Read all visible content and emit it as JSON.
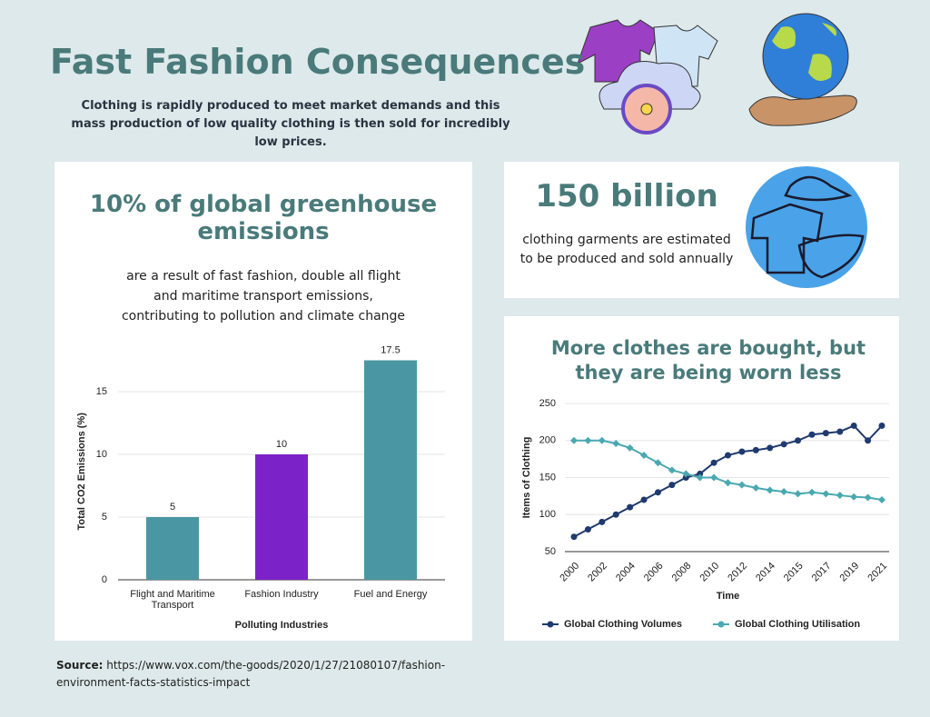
{
  "header": {
    "title": "Fast Fashion Consequences",
    "subtitle": "Clothing is rapidly produced to meet market demands and this mass production of low quality clothing is then sold for incredibly low prices."
  },
  "panels": [
    {
      "heading": "10% of global greenhouse emissions",
      "text": "are a result of fast fashion, double all flight and maritime transport emissions, contributing to pollution and climate change"
    },
    {
      "heading": "150 billion",
      "text": "clothing garments are estimated to be produced and sold annually"
    }
  ],
  "chart_data": [
    {
      "type": "bar",
      "categories": [
        "Flight and Maritime Transport",
        "Fashion Industry",
        "Fuel and Energy"
      ],
      "values": [
        5,
        10,
        17.5
      ],
      "colors": [
        "#4a97a3",
        "#7b22c8",
        "#4a97a3"
      ],
      "xlabel": "Polluting Industries",
      "ylabel": "Total CO2 Emissions (%)",
      "ylim": [
        0,
        18
      ],
      "yticks": [
        0,
        5,
        10,
        15
      ],
      "grid": true
    },
    {
      "type": "line",
      "title": "More clothes are bought, but they are being worn less",
      "categories": [
        "2000",
        null,
        "2002",
        null,
        "2004",
        null,
        "2006",
        null,
        "2008",
        null,
        "2010",
        null,
        "2012",
        null,
        "2014",
        null,
        "2015",
        null,
        "2017",
        null,
        "2019",
        null,
        "2021"
      ],
      "series": [
        {
          "name": "Global Clothing Volumes",
          "color": "#1f3a6e",
          "values": [
            70,
            80,
            90,
            100,
            110,
            120,
            130,
            140,
            150,
            155,
            170,
            180,
            185,
            187,
            190,
            195,
            200,
            208,
            210,
            212,
            220,
            200,
            220
          ]
        },
        {
          "name": "Global Clothing Utilisation",
          "color": "#4aa8b0",
          "values": [
            200,
            200,
            200,
            196,
            190,
            180,
            170,
            160,
            155,
            150,
            150,
            143,
            140,
            136,
            133,
            131,
            128,
            130,
            128,
            126,
            124,
            123,
            120
          ]
        }
      ],
      "xlabel": "Time",
      "ylabel": "Items of Clothing",
      "ylim": [
        50,
        250
      ],
      "yticks": [
        50,
        100,
        150,
        200,
        250
      ],
      "grid": true,
      "legend": "bottom"
    }
  ],
  "source": {
    "label": "Source:",
    "text": "https://www.vox.com/the-goods/2020/1/27/21080107/fashion-environment-facts-statistics-impact"
  }
}
